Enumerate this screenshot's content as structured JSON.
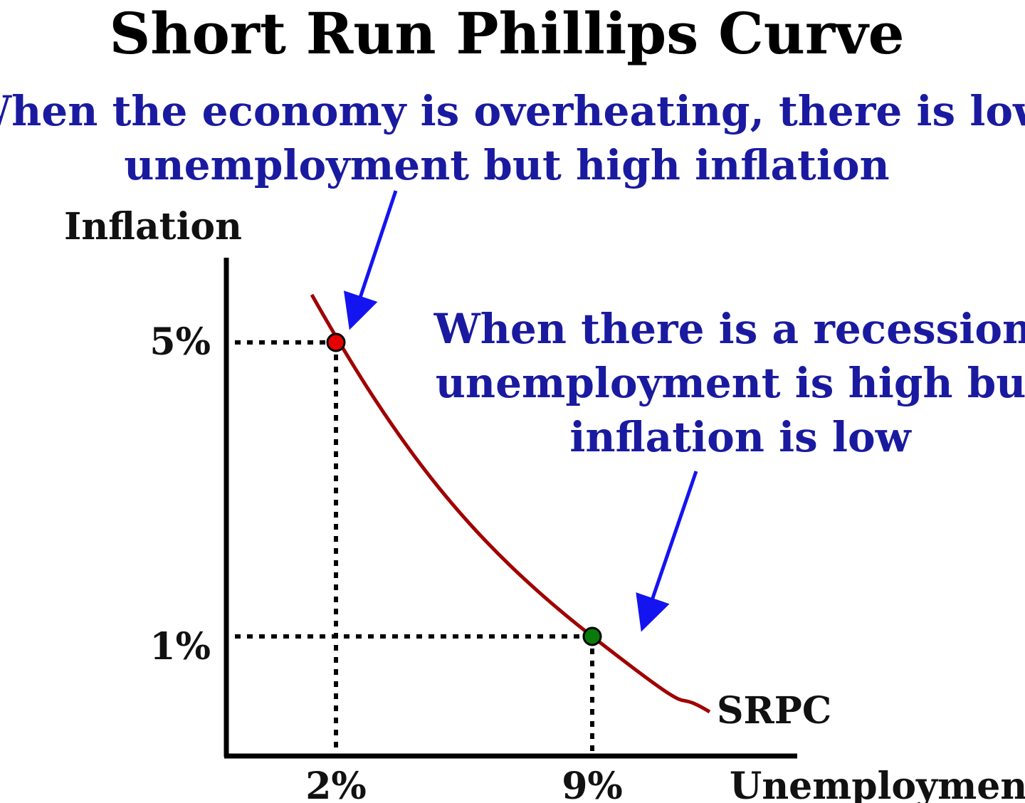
{
  "chart_data": {
    "type": "line",
    "title": "Short Run Phillips Curve",
    "xlabel": "Unemployment",
    "ylabel": "Inflation",
    "x_ticks": [
      "2%",
      "9%"
    ],
    "y_ticks": [
      "5%",
      "1%"
    ],
    "series": [
      {
        "name": "SRPC",
        "color": "#a00000",
        "shape": "downward-sloping convex curve"
      }
    ],
    "points": [
      {
        "x": 2,
        "y": 5,
        "color": "#e60000"
      },
      {
        "x": 9,
        "y": 1,
        "color": "#0a7a0a"
      }
    ],
    "guides": "dotted lines from each point to both axes",
    "annotations": [
      {
        "lines": [
          "When the economy is overheating, there is low",
          "unemployment but high inflation"
        ],
        "arrow_color": "#1414f0",
        "points_to": "point at x=2, y=5"
      },
      {
        "lines": [
          "When there is a recession,",
          "unemployment is high but",
          "inflation is low"
        ],
        "arrow_color": "#1414f0",
        "points_to": "point at x=9, y=1"
      }
    ],
    "grid": false,
    "legend": "none"
  }
}
